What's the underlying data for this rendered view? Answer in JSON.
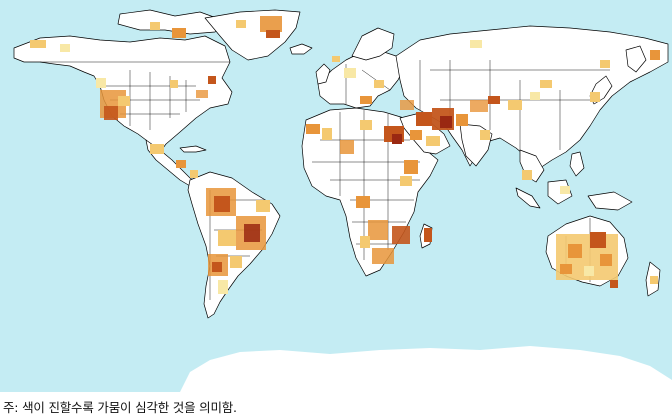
{
  "note": "주: 색이 진할수록 가뭄이 심각한 것을 의미함.",
  "colors": {
    "ocean": "#c4ecf3",
    "land": "#ffffff",
    "border": "#000000",
    "drought_light": "#f8e8a6",
    "drought_mild": "#f4c970",
    "drought_moderate": "#e8953a",
    "drought_severe": "#c4561c",
    "drought_extreme": "#9a2812"
  }
}
